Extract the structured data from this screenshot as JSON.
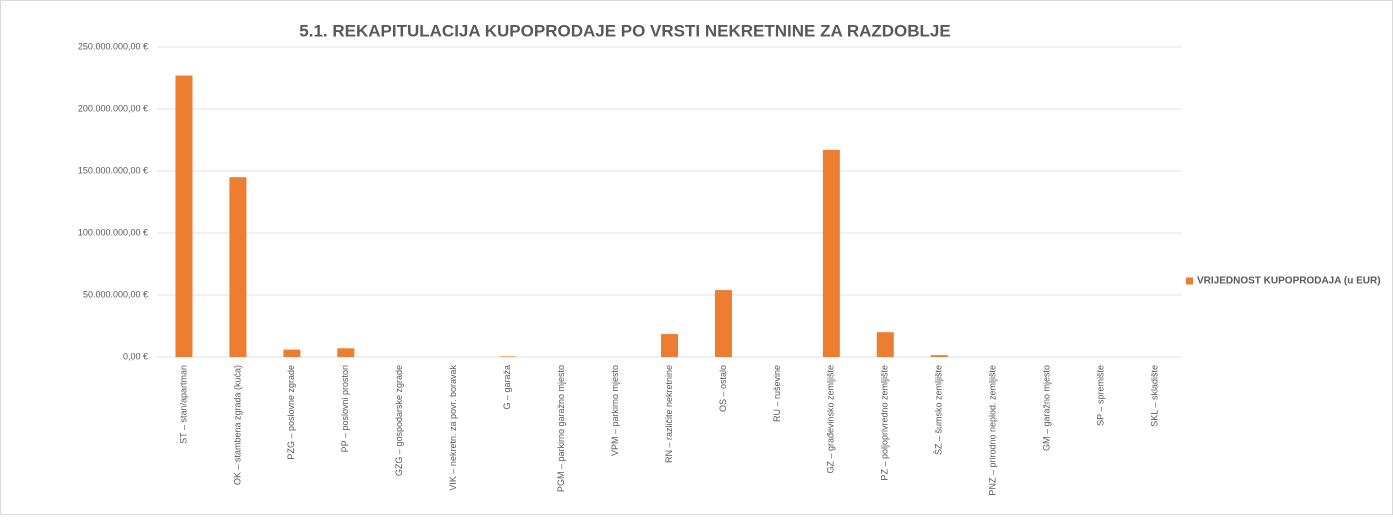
{
  "chart_data": {
    "type": "bar",
    "title": "5.1. REKAPITULACIJA KUPOPRODAJE PO VRSTI NEKRETNINE ZA RAZDOBLJE",
    "categories": [
      "ST – stan/apartman",
      "OK – stambena zgrada (kuća)",
      "PZG – poslovne zgrade",
      "PP – poslovni prostori",
      "GZG – gospodarske zgrade",
      "VIK – nekretn. za povr. boravak",
      "G – garaža",
      "PGM – parkirno garažno mjesto",
      "VPM – parkirno mjesto",
      "RN – različite nekretnine",
      "OS – ostalo",
      "RU – ruševine",
      "GZ – građevinsko zemljište",
      "PZ – poljoprivredno zemljište",
      "ŠZ – šumsko zemljište",
      "PNZ – prirodno neplod. zemljište",
      "GM – garažno mjesto",
      "SP – spremište",
      "SKL – skladište"
    ],
    "series": [
      {
        "name": "VRIJEDNOST KUPOPRODAJA (u EUR)",
        "color": "#ed7d31",
        "values": [
          227000000,
          145000000,
          6000000,
          7000000,
          0,
          0,
          500000,
          0,
          0,
          18500000,
          54000000,
          0,
          167000000,
          20000000,
          1500000,
          0,
          0,
          0,
          0
        ]
      }
    ],
    "ylim": [
      0,
      250000000
    ],
    "yticks": [
      {
        "value": 0,
        "label": "0,00 €"
      },
      {
        "value": 50000000,
        "label": "50.000.000,00 €"
      },
      {
        "value": 100000000,
        "label": "100.000.000,00 €"
      },
      {
        "value": 150000000,
        "label": "150.000.000,00 €"
      },
      {
        "value": 200000000,
        "label": "200.000.000,00 €"
      },
      {
        "value": 250000000,
        "label": "250.000.000,00 €"
      }
    ],
    "grid": true,
    "legend": "right"
  }
}
